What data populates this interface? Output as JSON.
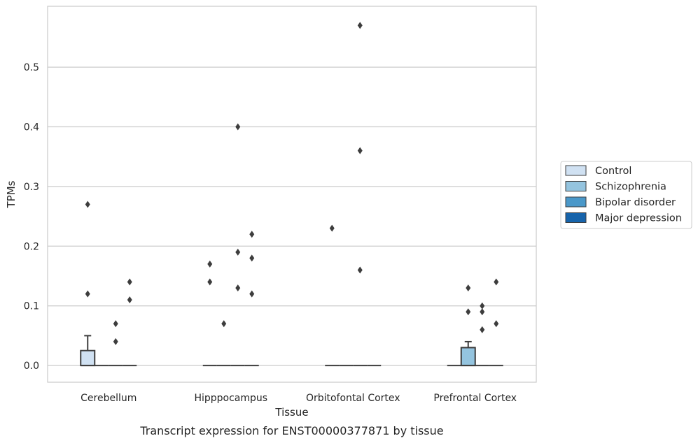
{
  "chart_data": {
    "type": "boxplot",
    "caption": "Transcript expression for ENST00000377871 by tissue",
    "xlabel": "Tissue",
    "ylabel": "TPMs",
    "ylim": [
      -0.028,
      0.602
    ],
    "yticks": [
      "0.0",
      "0.1",
      "0.2",
      "0.3",
      "0.4",
      "0.5"
    ],
    "grid": "horizontal",
    "legend_position": "right",
    "categories": [
      "Cerebellum",
      "Hipppocampus",
      "Orbitofontal Cortex",
      "Prefrontal Cortex"
    ],
    "series": [
      {
        "name": "Control",
        "color": "#d0e1f2",
        "boxes": [
          {
            "q1": 0,
            "median": 0,
            "q3": 0.025,
            "whisker_low": 0,
            "whisker_high": 0.05,
            "outliers": [
              0.12,
              0.27
            ]
          },
          {
            "q1": 0,
            "median": 0,
            "q3": 0,
            "whisker_low": 0,
            "whisker_high": 0,
            "outliers": [
              0.14,
              0.17
            ]
          },
          {
            "q1": 0,
            "median": 0,
            "q3": 0,
            "whisker_low": 0,
            "whisker_high": 0,
            "outliers": [
              0.23
            ]
          },
          {
            "q1": 0,
            "median": 0,
            "q3": 0,
            "whisker_low": 0,
            "whisker_high": 0,
            "outliers": []
          }
        ]
      },
      {
        "name": "Schizophrenia",
        "color": "#94c4df",
        "boxes": [
          {
            "q1": 0,
            "median": 0,
            "q3": 0,
            "whisker_low": 0,
            "whisker_high": 0,
            "outliers": []
          },
          {
            "q1": 0,
            "median": 0,
            "q3": 0,
            "whisker_low": 0,
            "whisker_high": 0,
            "outliers": [
              0.07
            ]
          },
          {
            "q1": 0,
            "median": 0,
            "q3": 0,
            "whisker_low": 0,
            "whisker_high": 0,
            "outliers": []
          },
          {
            "q1": 0,
            "median": 0,
            "q3": 0.03,
            "whisker_low": 0,
            "whisker_high": 0.04,
            "outliers": [
              0.09,
              0.13
            ]
          }
        ]
      },
      {
        "name": "Bipolar disorder",
        "color": "#4a98c9",
        "boxes": [
          {
            "q1": 0,
            "median": 0,
            "q3": 0,
            "whisker_low": 0,
            "whisker_high": 0,
            "outliers": [
              0.04,
              0.07
            ]
          },
          {
            "q1": 0,
            "median": 0,
            "q3": 0,
            "whisker_low": 0,
            "whisker_high": 0,
            "outliers": [
              0.13,
              0.19,
              0.4
            ]
          },
          {
            "q1": 0,
            "median": 0,
            "q3": 0,
            "whisker_low": 0,
            "whisker_high": 0,
            "outliers": [
              0.16,
              0.36,
              0.57
            ]
          },
          {
            "q1": 0,
            "median": 0,
            "q3": 0,
            "whisker_low": 0,
            "whisker_high": 0,
            "outliers": [
              0.06,
              0.09,
              0.1
            ]
          }
        ]
      },
      {
        "name": "Major depression",
        "color": "#1764ab",
        "boxes": [
          {
            "q1": 0,
            "median": 0,
            "q3": 0,
            "whisker_low": 0,
            "whisker_high": 0,
            "outliers": [
              0.11,
              0.14
            ]
          },
          {
            "q1": 0,
            "median": 0,
            "q3": 0,
            "whisker_low": 0,
            "whisker_high": 0,
            "outliers": [
              0.12,
              0.18,
              0.22
            ]
          },
          {
            "q1": 0,
            "median": 0,
            "q3": 0,
            "whisker_low": 0,
            "whisker_high": 0,
            "outliers": []
          },
          {
            "q1": 0,
            "median": 0,
            "q3": 0,
            "whisker_low": 0,
            "whisker_high": 0,
            "outliers": [
              0.07,
              0.14
            ]
          }
        ]
      }
    ],
    "colors": {
      "grid": "#cccccc",
      "frame": "#cccccc",
      "box_edge": "#3d3d3d"
    }
  }
}
